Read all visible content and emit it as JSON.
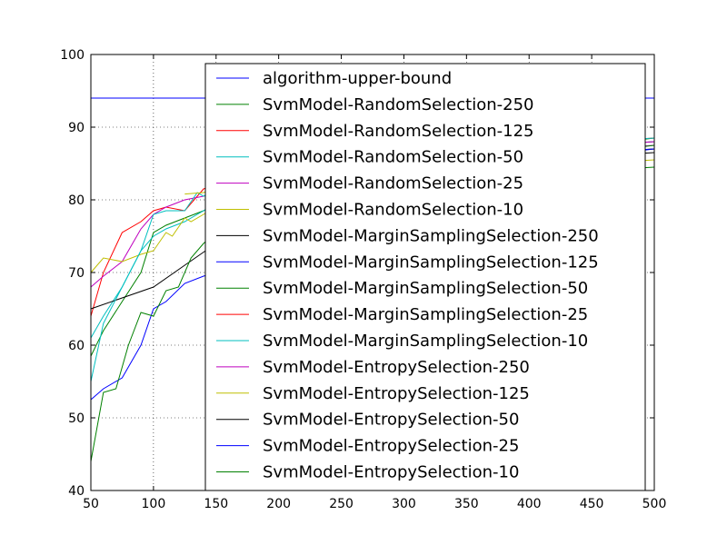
{
  "chart_data": {
    "type": "line",
    "title": "",
    "xlabel": "",
    "ylabel": "",
    "xlim": [
      50,
      500
    ],
    "ylim": [
      40,
      100
    ],
    "xticks": [
      50,
      100,
      150,
      200,
      250,
      300,
      350,
      400,
      450,
      500
    ],
    "yticks": [
      40,
      50,
      60,
      70,
      80,
      90,
      100
    ],
    "grid": true,
    "legend": "upper-right",
    "series": [
      {
        "name": "algorithm-upper-bound",
        "color": "#0000ff",
        "x": [
          50,
          500
        ],
        "y": [
          94,
          94
        ]
      },
      {
        "name": "SvmModel-RandomSelection-250",
        "color": "#008000",
        "x": [
          50,
          60,
          75,
          90,
          100,
          110,
          125,
          140,
          150,
          200,
          250,
          300,
          350,
          400,
          450,
          500
        ],
        "y": [
          58.5,
          62,
          66,
          70,
          75.5,
          76.5,
          77.5,
          78.5,
          79.5,
          81.5,
          83,
          84.5,
          85.5,
          86.5,
          87.5,
          88.5
        ]
      },
      {
        "name": "SvmModel-RandomSelection-125",
        "color": "#ff0000",
        "x": [
          50,
          60,
          75,
          90,
          100,
          110,
          125,
          140,
          150,
          200,
          250,
          300,
          350,
          400,
          450,
          500
        ],
        "y": [
          64,
          70,
          75.5,
          77,
          78.5,
          79,
          78.5,
          81.5,
          82,
          83.5,
          84.5,
          85.5,
          86.5,
          87,
          87.5,
          88
        ]
      },
      {
        "name": "SvmModel-RandomSelection-50",
        "color": "#00bfbf",
        "x": [
          50,
          60,
          75,
          90,
          100,
          110,
          125,
          140,
          150,
          200,
          250,
          300,
          350,
          400,
          450,
          500
        ],
        "y": [
          61,
          64,
          68,
          73,
          75,
          76,
          77,
          78.5,
          79.5,
          81.5,
          83,
          84.5,
          85.5,
          86.5,
          87.5,
          88
        ]
      },
      {
        "name": "SvmModel-RandomSelection-25",
        "color": "#bf00bf",
        "x": [
          50,
          60,
          75,
          90,
          100,
          110,
          125,
          140,
          150,
          200,
          250,
          300,
          350,
          400,
          450,
          500
        ],
        "y": [
          68,
          69.5,
          71.5,
          76,
          78,
          79,
          80,
          80.5,
          81,
          82.5,
          84,
          85,
          86,
          86.5,
          87,
          87.5
        ]
      },
      {
        "name": "SvmModel-RandomSelection-10",
        "color": "#bfbf00",
        "x": [
          50,
          60,
          75,
          90,
          100,
          110,
          115,
          125,
          130,
          140,
          150,
          200,
          250,
          300,
          350,
          400,
          450,
          500
        ],
        "y": [
          70,
          72,
          71.5,
          72.5,
          73,
          75.5,
          75,
          77.5,
          77,
          78,
          79,
          80.5,
          82,
          83,
          84,
          84.5,
          85,
          85.5
        ]
      },
      {
        "name": "SvmModel-MarginSamplingSelection-250",
        "color": "#000000",
        "x": [
          50,
          75,
          100,
          125,
          150,
          200,
          250,
          300,
          350,
          400,
          450,
          500
        ],
        "y": [
          65,
          66.5,
          68,
          71,
          74,
          78,
          81,
          83,
          84.5,
          85.5,
          86,
          86.5
        ]
      },
      {
        "name": "SvmModel-MarginSamplingSelection-125",
        "color": "#0000ff",
        "x": [
          50,
          60,
          75,
          90,
          100,
          110,
          125,
          140,
          150,
          200,
          250,
          300,
          350,
          400,
          450,
          500
        ],
        "y": [
          52.5,
          54,
          55.5,
          60,
          65,
          66,
          68.5,
          69.5,
          70,
          76,
          80,
          82.5,
          84,
          85,
          86,
          87
        ]
      },
      {
        "name": "SvmModel-MarginSamplingSelection-50",
        "color": "#008000",
        "x": [
          50,
          60,
          70,
          80,
          90,
          100,
          110,
          120,
          130,
          140,
          150,
          200,
          250,
          300,
          350,
          400,
          450,
          500
        ],
        "y": [
          44,
          53.5,
          54,
          60,
          64.5,
          64,
          67.5,
          68,
          72,
          74,
          75.5,
          79,
          81.5,
          83,
          84.5,
          85.5,
          86.5,
          87.5
        ]
      },
      {
        "name": "SvmModel-MarginSamplingSelection-25",
        "color": "#ff0000",
        "x": [
          150,
          200,
          250,
          300,
          350,
          400,
          450,
          500
        ],
        "y": [
          82.5,
          84,
          85,
          86,
          87,
          87.5,
          88,
          88.5
        ]
      },
      {
        "name": "SvmModel-MarginSamplingSelection-10",
        "color": "#00bfbf",
        "x": [
          50,
          60,
          75,
          90,
          100,
          110,
          125,
          135,
          140,
          150,
          200,
          250,
          300,
          350,
          400,
          450,
          500
        ],
        "y": [
          55,
          63,
          68,
          73,
          78,
          78.5,
          78.5,
          81,
          80.5,
          81.5,
          83,
          84.5,
          85.5,
          86.5,
          87.5,
          88,
          88.5
        ]
      },
      {
        "name": "SvmModel-EntropySelection-250",
        "color": "#bf00bf",
        "x": [
          150,
          200,
          250,
          300,
          350,
          400,
          450,
          500
        ],
        "y": [
          81.5,
          83.5,
          84.5,
          85.5,
          86.5,
          87,
          87.5,
          88
        ]
      },
      {
        "name": "SvmModel-EntropySelection-125",
        "color": "#bfbf00",
        "x": [
          125,
          140,
          150,
          200,
          250,
          300,
          350,
          400,
          450,
          500
        ],
        "y": [
          80.8,
          81,
          81.5,
          82.5,
          83.5,
          84.5,
          85.5,
          86,
          86.5,
          87
        ]
      },
      {
        "name": "SvmModel-EntropySelection-50",
        "color": "#000000",
        "x": [
          150,
          200,
          250,
          300,
          350,
          400,
          450,
          500
        ],
        "y": [
          80,
          82,
          83.5,
          84.5,
          85.5,
          86,
          86.5,
          87
        ]
      },
      {
        "name": "SvmModel-EntropySelection-25",
        "color": "#0000ff",
        "x": [
          150,
          200,
          250,
          300,
          350,
          400,
          450,
          500
        ],
        "y": [
          79.5,
          81.5,
          83,
          84,
          85,
          86,
          86.5,
          87
        ]
      },
      {
        "name": "SvmModel-EntropySelection-10",
        "color": "#008000",
        "x": [
          150,
          200,
          250,
          300,
          350,
          400,
          450,
          500
        ],
        "y": [
          76,
          78.5,
          80.5,
          82,
          83,
          83.5,
          84,
          84.5
        ]
      }
    ]
  }
}
